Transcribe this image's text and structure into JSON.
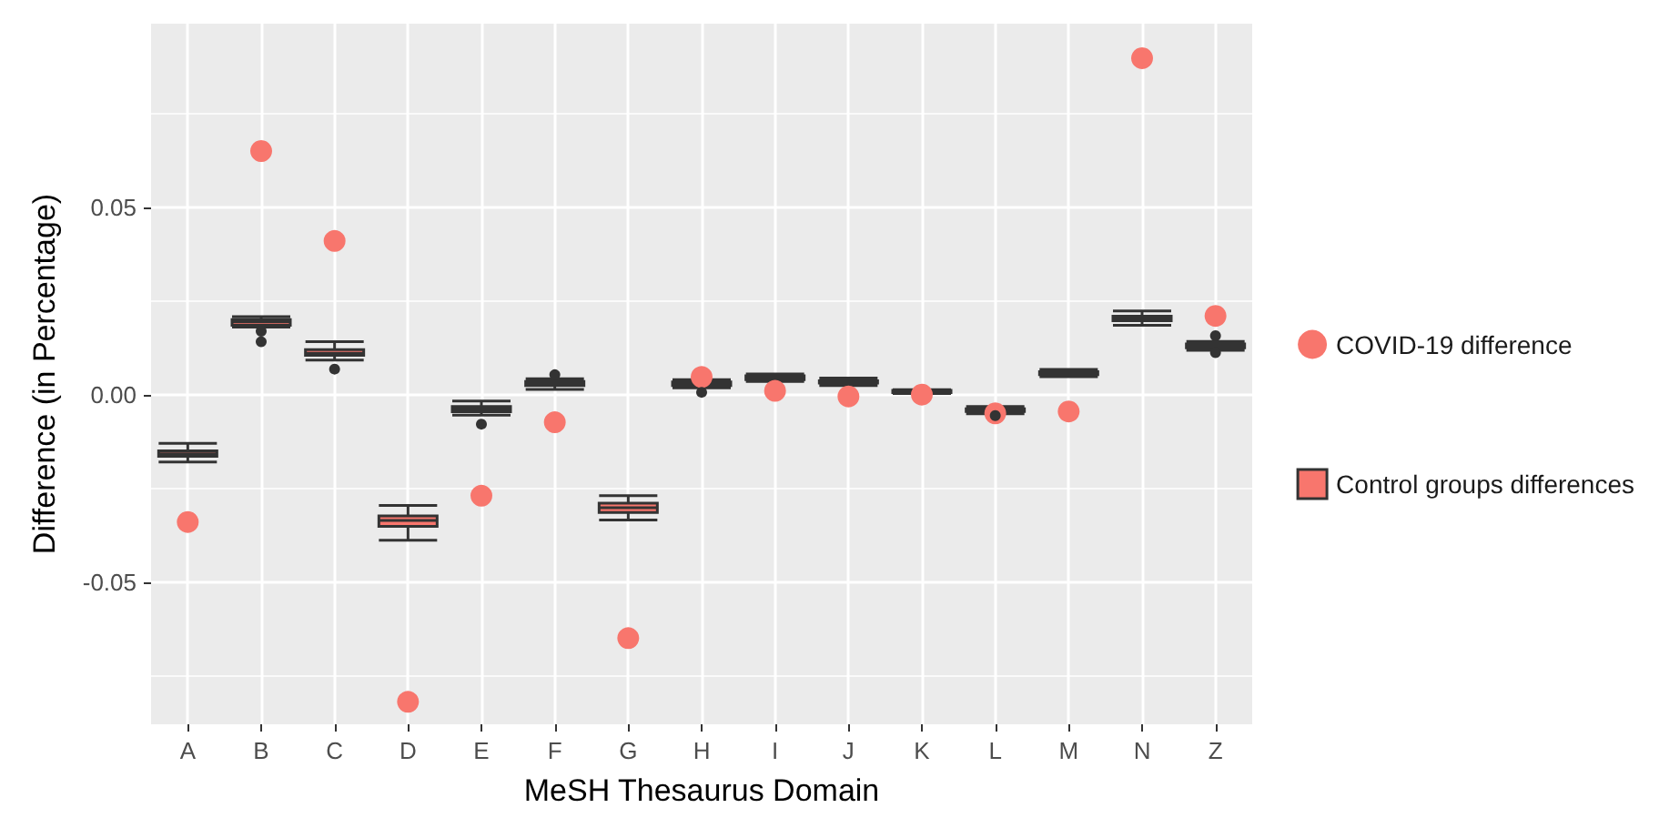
{
  "chart_data": {
    "type": "scatter",
    "xlabel": "MeSH Thesaurus Domain",
    "ylabel": "Difference (in Percentage)",
    "categories": [
      "A",
      "B",
      "C",
      "D",
      "E",
      "F",
      "G",
      "H",
      "I",
      "J",
      "K",
      "L",
      "M",
      "N",
      "Z"
    ],
    "ylim": [
      -0.088,
      0.099
    ],
    "yticks": [
      {
        "value": -0.05,
        "label": "-0.05"
      },
      {
        "value": 0,
        "label": "0.00"
      },
      {
        "value": 0.05,
        "label": "0.05"
      }
    ],
    "grid": true,
    "legend": "right",
    "marker": "circle",
    "series": [
      {
        "name": "COVID-19 difference",
        "color": "#f8766d",
        "values": [
          -0.034,
          0.065,
          0.041,
          -0.082,
          -0.027,
          -0.0074,
          -0.065,
          0.0047,
          0.001,
          -0.0005,
          0,
          -0.005,
          -0.0045,
          0.0898,
          0.021
        ]
      },
      {
        "name": "Control groups differences",
        "type": "box",
        "color": "#f8766d",
        "boxes": [
          {
            "low": -0.018,
            "q1": -0.0165,
            "median": -0.0158,
            "q3": -0.015,
            "high": -0.013
          },
          {
            "low": 0.018,
            "q1": 0.0185,
            "median": 0.0194,
            "q3": 0.02,
            "high": 0.0208,
            "outliers": [
              0.0169,
              0.0141
            ]
          },
          {
            "low": 0.0092,
            "q1": 0.0105,
            "median": 0.011,
            "q3": 0.012,
            "high": 0.0141,
            "outliers": [
              0.0068
            ]
          },
          {
            "low": -0.0389,
            "q1": -0.0352,
            "median": -0.0336,
            "q3": -0.0324,
            "high": -0.0296
          },
          {
            "low": -0.0055,
            "q1": -0.0046,
            "median": -0.0039,
            "q3": -0.0032,
            "high": -0.0017,
            "outliers": [
              -0.0079
            ]
          },
          {
            "low": 0.0014,
            "q1": 0.0024,
            "median": 0.0029,
            "q3": 0.0035,
            "high": 0.0042,
            "outliers": [
              0.0053
            ]
          },
          {
            "low": -0.0335,
            "q1": -0.0315,
            "median": -0.0302,
            "q3": -0.029,
            "high": -0.027
          },
          {
            "low": 0.0018,
            "q1": 0.0024,
            "median": 0.0029,
            "q3": 0.0034,
            "high": 0.004,
            "outliers": [
              0.0006
            ]
          },
          {
            "low": 0.0035,
            "q1": 0.004,
            "median": 0.0045,
            "q3": 0.005,
            "high": 0.0055
          },
          {
            "low": 0.0024,
            "q1": 0.0031,
            "median": 0.0034,
            "q3": 0.0037,
            "high": 0.0044
          },
          {
            "low": 0.0003,
            "q1": 0.0005,
            "median": 0.0008,
            "q3": 0.0011,
            "high": 0.0013
          },
          {
            "low": -0.0051,
            "q1": -0.0045,
            "median": -0.0042,
            "q3": -0.0038,
            "high": -0.0032,
            "outliers": [
              -0.0056
            ]
          },
          {
            "low": 0.0048,
            "q1": 0.0053,
            "median": 0.0057,
            "q3": 0.0061,
            "high": 0.0067
          },
          {
            "low": 0.0185,
            "q1": 0.0197,
            "median": 0.0203,
            "q3": 0.0209,
            "high": 0.0223
          },
          {
            "low": 0.0118,
            "q1": 0.0125,
            "median": 0.013,
            "q3": 0.0135,
            "high": 0.0142,
            "outliers": [
              0.0157,
              0.0112
            ]
          }
        ]
      }
    ]
  }
}
